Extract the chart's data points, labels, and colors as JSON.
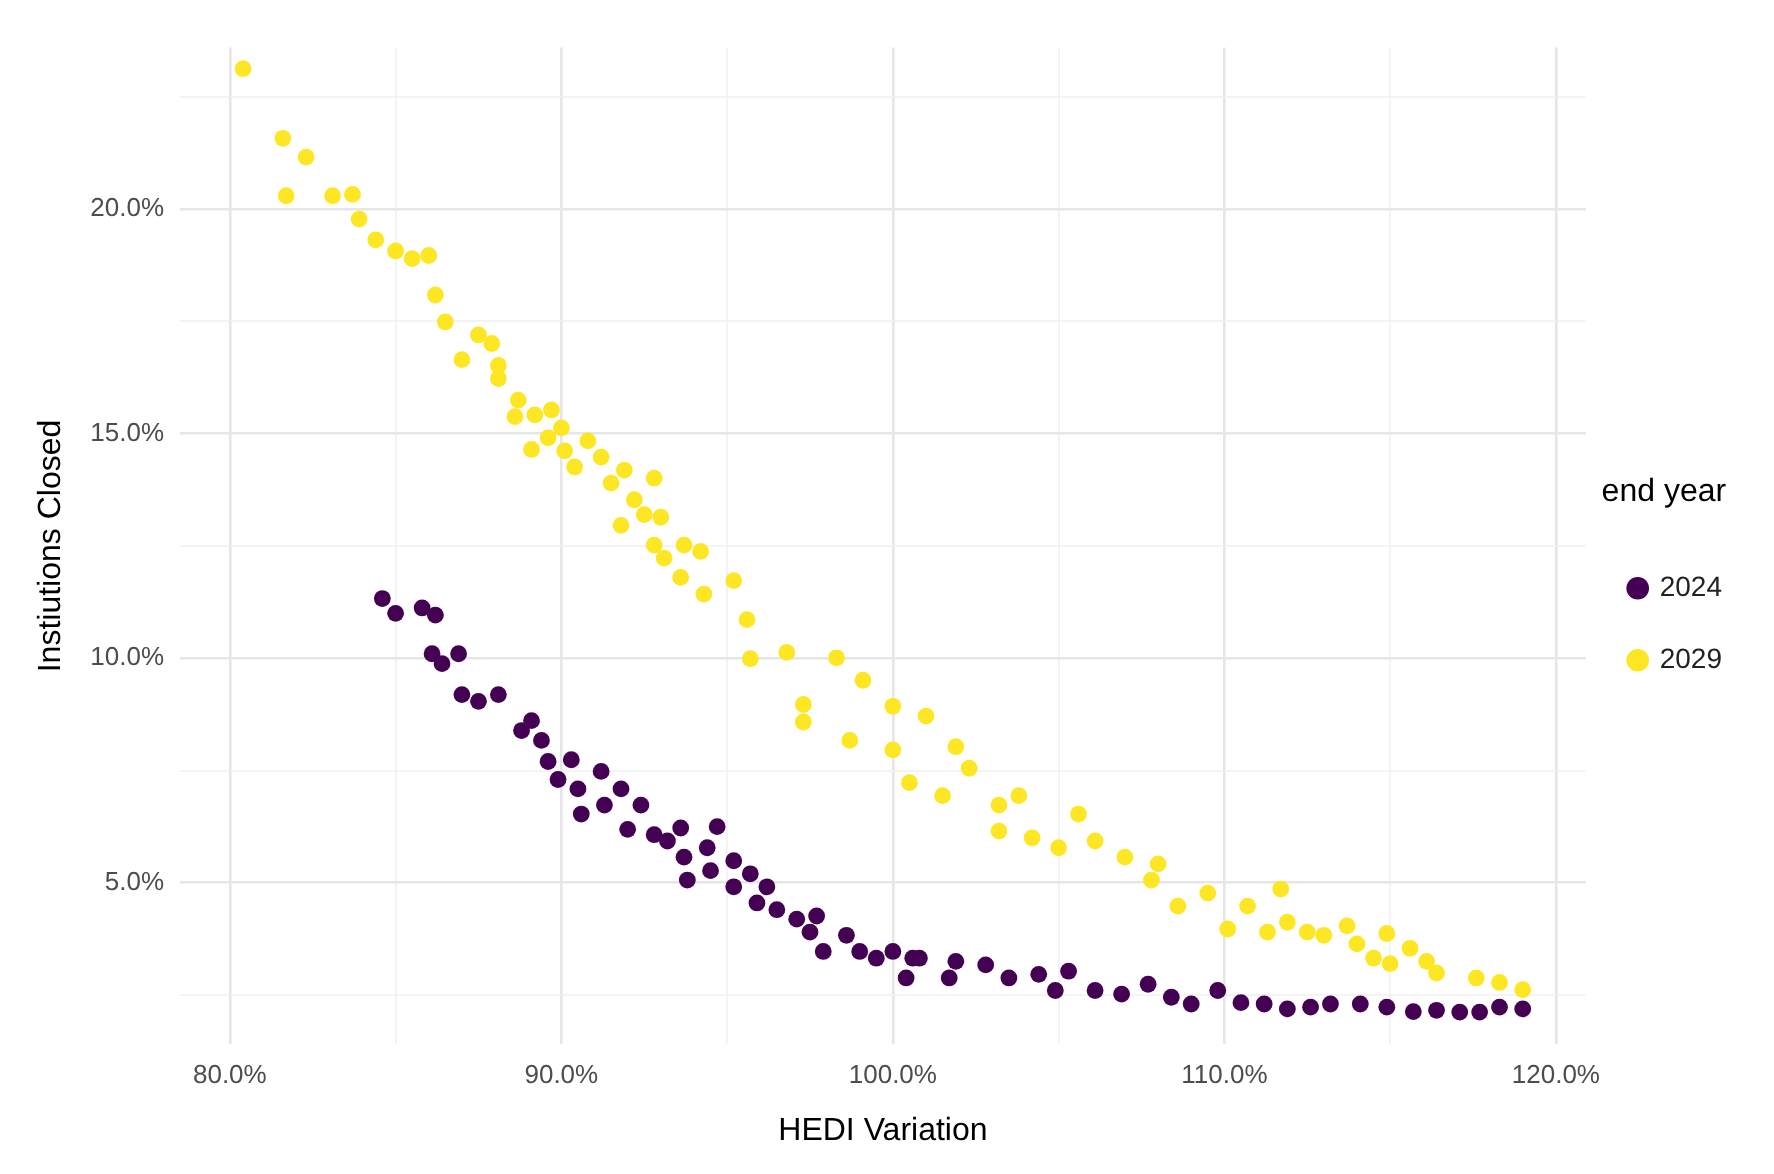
{
  "chart_data": {
    "type": "scatter",
    "xlabel": "HEDI Variation",
    "ylabel": "Instiutions Closed",
    "legend_title": "end year",
    "legend": "right",
    "grid": true,
    "marker": "circle",
    "xlim": [
      78.5,
      120.9
    ],
    "ylim": [
      1.4,
      23.6
    ],
    "xticks": [
      {
        "value": 80,
        "label": "80.0%"
      },
      {
        "value": 85,
        "label": null
      },
      {
        "value": 90,
        "label": "90.0%"
      },
      {
        "value": 95,
        "label": null
      },
      {
        "value": 100,
        "label": "100.0%"
      },
      {
        "value": 105,
        "label": null
      },
      {
        "value": 110,
        "label": "110.0%"
      },
      {
        "value": 115,
        "label": null
      },
      {
        "value": 120,
        "label": "120.0%"
      }
    ],
    "yticks": [
      {
        "value": 2.5,
        "label": null
      },
      {
        "value": 5,
        "label": "5.0%"
      },
      {
        "value": 7.5,
        "label": null
      },
      {
        "value": 10,
        "label": "10.0%"
      },
      {
        "value": 12.5,
        "label": null
      },
      {
        "value": 15,
        "label": "15.0%"
      },
      {
        "value": 17.5,
        "label": null
      },
      {
        "value": 20,
        "label": "20.0%"
      },
      {
        "value": 22.5,
        "label": null
      }
    ],
    "series": [
      {
        "name": "2024",
        "color": "#440154",
        "x": [
          84.6,
          85.0,
          85.8,
          86.2,
          86.1,
          86.4,
          86.9,
          87.0,
          87.5,
          88.1,
          88.8,
          89.1,
          89.4,
          89.6,
          90.3,
          89.9,
          90.5,
          91.2,
          90.6,
          91.3,
          91.8,
          92.4,
          92.0,
          92.8,
          93.6,
          94.7,
          93.2,
          93.7,
          94.4,
          93.8,
          94.5,
          95.2,
          95.2,
          95.7,
          96.2,
          95.9,
          96.5,
          97.1,
          97.7,
          97.5,
          97.9,
          98.6,
          99.0,
          99.5,
          100.0,
          100.4,
          100.8,
          100.6,
          101.7,
          101.9,
          102.8,
          103.5,
          104.4,
          105.3,
          104.9,
          106.1,
          106.9,
          107.7,
          108.4,
          109.0,
          109.8,
          110.5,
          111.2,
          111.9,
          112.6,
          113.2,
          114.1,
          114.9,
          115.7,
          116.4,
          117.1,
          117.7,
          118.3,
          119.0
        ],
        "values": [
          11.33,
          11.0,
          11.12,
          10.96,
          10.1,
          9.88,
          10.1,
          9.19,
          9.04,
          9.19,
          8.39,
          8.61,
          8.17,
          7.7,
          7.74,
          7.3,
          7.09,
          7.48,
          6.53,
          6.73,
          7.09,
          6.73,
          6.19,
          6.07,
          6.22,
          6.25,
          5.93,
          5.57,
          5.78,
          5.06,
          5.27,
          5.49,
          4.91,
          5.2,
          4.91,
          4.55,
          4.4,
          4.19,
          4.26,
          3.9,
          3.47,
          3.83,
          3.47,
          3.32,
          3.47,
          2.88,
          3.32,
          3.32,
          2.88,
          3.25,
          3.17,
          2.88,
          2.96,
          3.03,
          2.6,
          2.6,
          2.52,
          2.74,
          2.45,
          2.3,
          2.6,
          2.33,
          2.3,
          2.19,
          2.23,
          2.3,
          2.3,
          2.23,
          2.13,
          2.16,
          2.12,
          2.12,
          2.23,
          2.19
        ]
      },
      {
        "name": "2029",
        "color": "#fde725",
        "x": [
          80.4,
          81.6,
          82.3,
          81.7,
          83.1,
          83.7,
          83.9,
          84.4,
          85.0,
          85.5,
          86.0,
          86.2,
          86.5,
          87.0,
          87.5,
          87.9,
          88.1,
          88.1,
          88.7,
          88.6,
          89.2,
          89.1,
          89.7,
          89.6,
          90.0,
          90.1,
          90.4,
          90.8,
          91.2,
          91.5,
          91.9,
          92.2,
          92.8,
          92.5,
          91.8,
          93.0,
          92.8,
          93.1,
          93.7,
          94.2,
          93.6,
          95.2,
          94.3,
          95.6,
          95.7,
          96.8,
          97.3,
          97.3,
          98.3,
          99.1,
          98.7,
          100.0,
          100.0,
          100.5,
          101.0,
          101.9,
          102.3,
          101.5,
          103.2,
          103.8,
          103.2,
          104.2,
          105.6,
          105.0,
          106.1,
          107.0,
          108.0,
          107.8,
          108.6,
          109.5,
          110.1,
          110.7,
          111.7,
          111.3,
          111.9,
          112.5,
          113.0,
          113.7,
          114.0,
          114.5,
          114.9,
          115.0,
          115.6,
          116.1,
          116.4,
          117.6,
          118.3,
          119.0
        ],
        "values": [
          23.13,
          21.58,
          21.16,
          20.3,
          20.3,
          20.33,
          19.78,
          19.32,
          19.07,
          18.9,
          18.97,
          18.09,
          17.49,
          16.65,
          17.2,
          17.01,
          16.52,
          16.23,
          15.75,
          15.38,
          15.42,
          14.65,
          15.53,
          14.91,
          15.13,
          14.62,
          14.26,
          14.84,
          14.48,
          13.9,
          14.19,
          13.53,
          14.01,
          13.2,
          12.96,
          13.14,
          12.52,
          12.23,
          12.52,
          12.38,
          11.8,
          11.73,
          11.43,
          10.86,
          9.99,
          10.13,
          8.97,
          8.58,
          10.01,
          9.51,
          8.17,
          8.93,
          7.96,
          7.23,
          8.71,
          8.03,
          7.55,
          6.94,
          6.73,
          6.94,
          6.15,
          6.0,
          6.53,
          5.78,
          5.93,
          5.57,
          5.42,
          5.06,
          4.48,
          4.77,
          3.97,
          4.48,
          4.86,
          3.9,
          4.12,
          3.9,
          3.83,
          4.04,
          3.64,
          3.32,
          3.87,
          3.2,
          3.54,
          3.25,
          2.99,
          2.88,
          2.78,
          2.62
        ]
      }
    ]
  }
}
